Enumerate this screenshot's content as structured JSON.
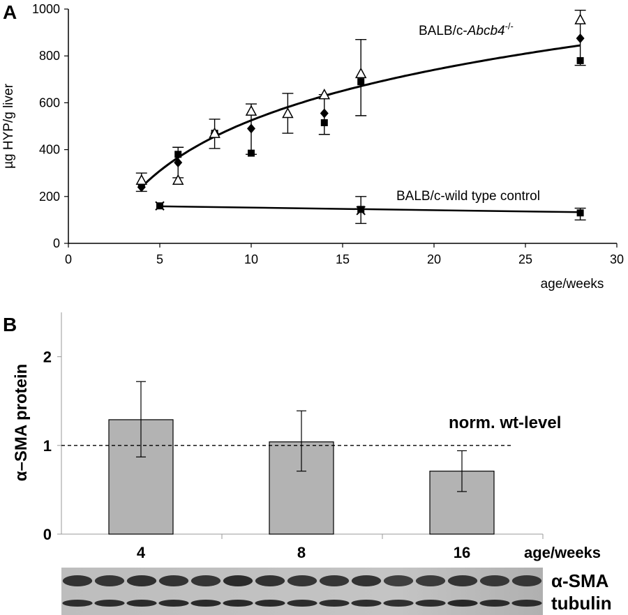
{
  "panels": {
    "a": {
      "letter": "A",
      "ylabel": "µg HYP/g liver",
      "xlabel": "age/weeks",
      "yticks": [
        "0",
        "200",
        "400",
        "600",
        "800",
        "1000"
      ],
      "xticks": [
        "0",
        "5",
        "10",
        "15",
        "20",
        "25",
        "30"
      ],
      "label_ko": "BALB/c-",
      "label_ko_italic": "Abcb4",
      "label_ko_sup": "-/-",
      "label_wt": "BALB/c-wild type control"
    },
    "b": {
      "letter": "B",
      "ylabel": "α–SMA protein",
      "xlabel": "age/weeks",
      "yticks": [
        "0",
        "1",
        "2"
      ],
      "ref_label": "norm. wt-level",
      "blot_labels": [
        "α-SMA",
        "tubulin"
      ]
    }
  },
  "chart_data": [
    {
      "type": "scatter",
      "xlim": [
        0,
        30
      ],
      "ylim": [
        0,
        1000
      ],
      "x_tick_values": [
        0,
        5,
        10,
        15,
        20,
        25,
        30
      ],
      "y_tick_values": [
        0,
        200,
        400,
        600,
        800,
        1000
      ],
      "series": [
        {
          "marker": "square",
          "x": [
            4,
            6,
            8,
            10,
            14,
            16,
            28
          ],
          "y": [
            250,
            380,
            470,
            385,
            515,
            690,
            780
          ]
        },
        {
          "marker": "diamond",
          "x": [
            4,
            6,
            8,
            10,
            14,
            28
          ],
          "y": [
            240,
            345,
            470,
            490,
            555,
            875
          ]
        },
        {
          "marker": "triangle-open",
          "x": [
            4,
            6,
            8,
            10,
            12,
            14,
            16,
            28
          ],
          "y": [
            270,
            270,
            470,
            565,
            555,
            635,
            725,
            955
          ]
        },
        {
          "marker": "square",
          "x": [
            5,
            16,
            28
          ],
          "y": [
            160,
            145,
            130
          ]
        },
        {
          "marker": "cross",
          "x": [
            5,
            16
          ],
          "y": [
            160,
            140
          ]
        }
      ],
      "error_bars": [
        {
          "x": 4,
          "low": 222,
          "high": 300
        },
        {
          "x": 6,
          "low": 280,
          "high": 410
        },
        {
          "x": 8,
          "low": 405,
          "high": 530
        },
        {
          "x": 10,
          "low": 380,
          "high": 595
        },
        {
          "x": 12,
          "low": 470,
          "high": 640
        },
        {
          "x": 14,
          "low": 465,
          "high": 635
        },
        {
          "x": 16,
          "low": 545,
          "high": 870
        },
        {
          "x": 28,
          "low": 760,
          "high": 995
        },
        {
          "x": 16,
          "low": 85,
          "high": 200
        },
        {
          "x": 28,
          "low": 100,
          "high": 150
        }
      ],
      "trend_ko": {
        "form": "logarithmic",
        "x_start": 4,
        "x_end": 28,
        "y_start": 240,
        "y_end": 845
      },
      "trend_wt": {
        "form": "linear",
        "x_start": 5,
        "x_end": 28,
        "y_start": 158,
        "y_end": 133
      }
    },
    {
      "type": "bar",
      "categories": [
        "4",
        "8",
        "16"
      ],
      "values": [
        1.29,
        1.04,
        0.71
      ],
      "error_low": [
        0.87,
        0.71,
        0.48
      ],
      "error_high": [
        1.72,
        1.39,
        0.94
      ],
      "ylim": [
        0,
        2.5
      ],
      "y_tick_values": [
        0,
        1,
        2
      ],
      "reference_line": 1.0,
      "bar_color": "#b3b3b3"
    }
  ]
}
